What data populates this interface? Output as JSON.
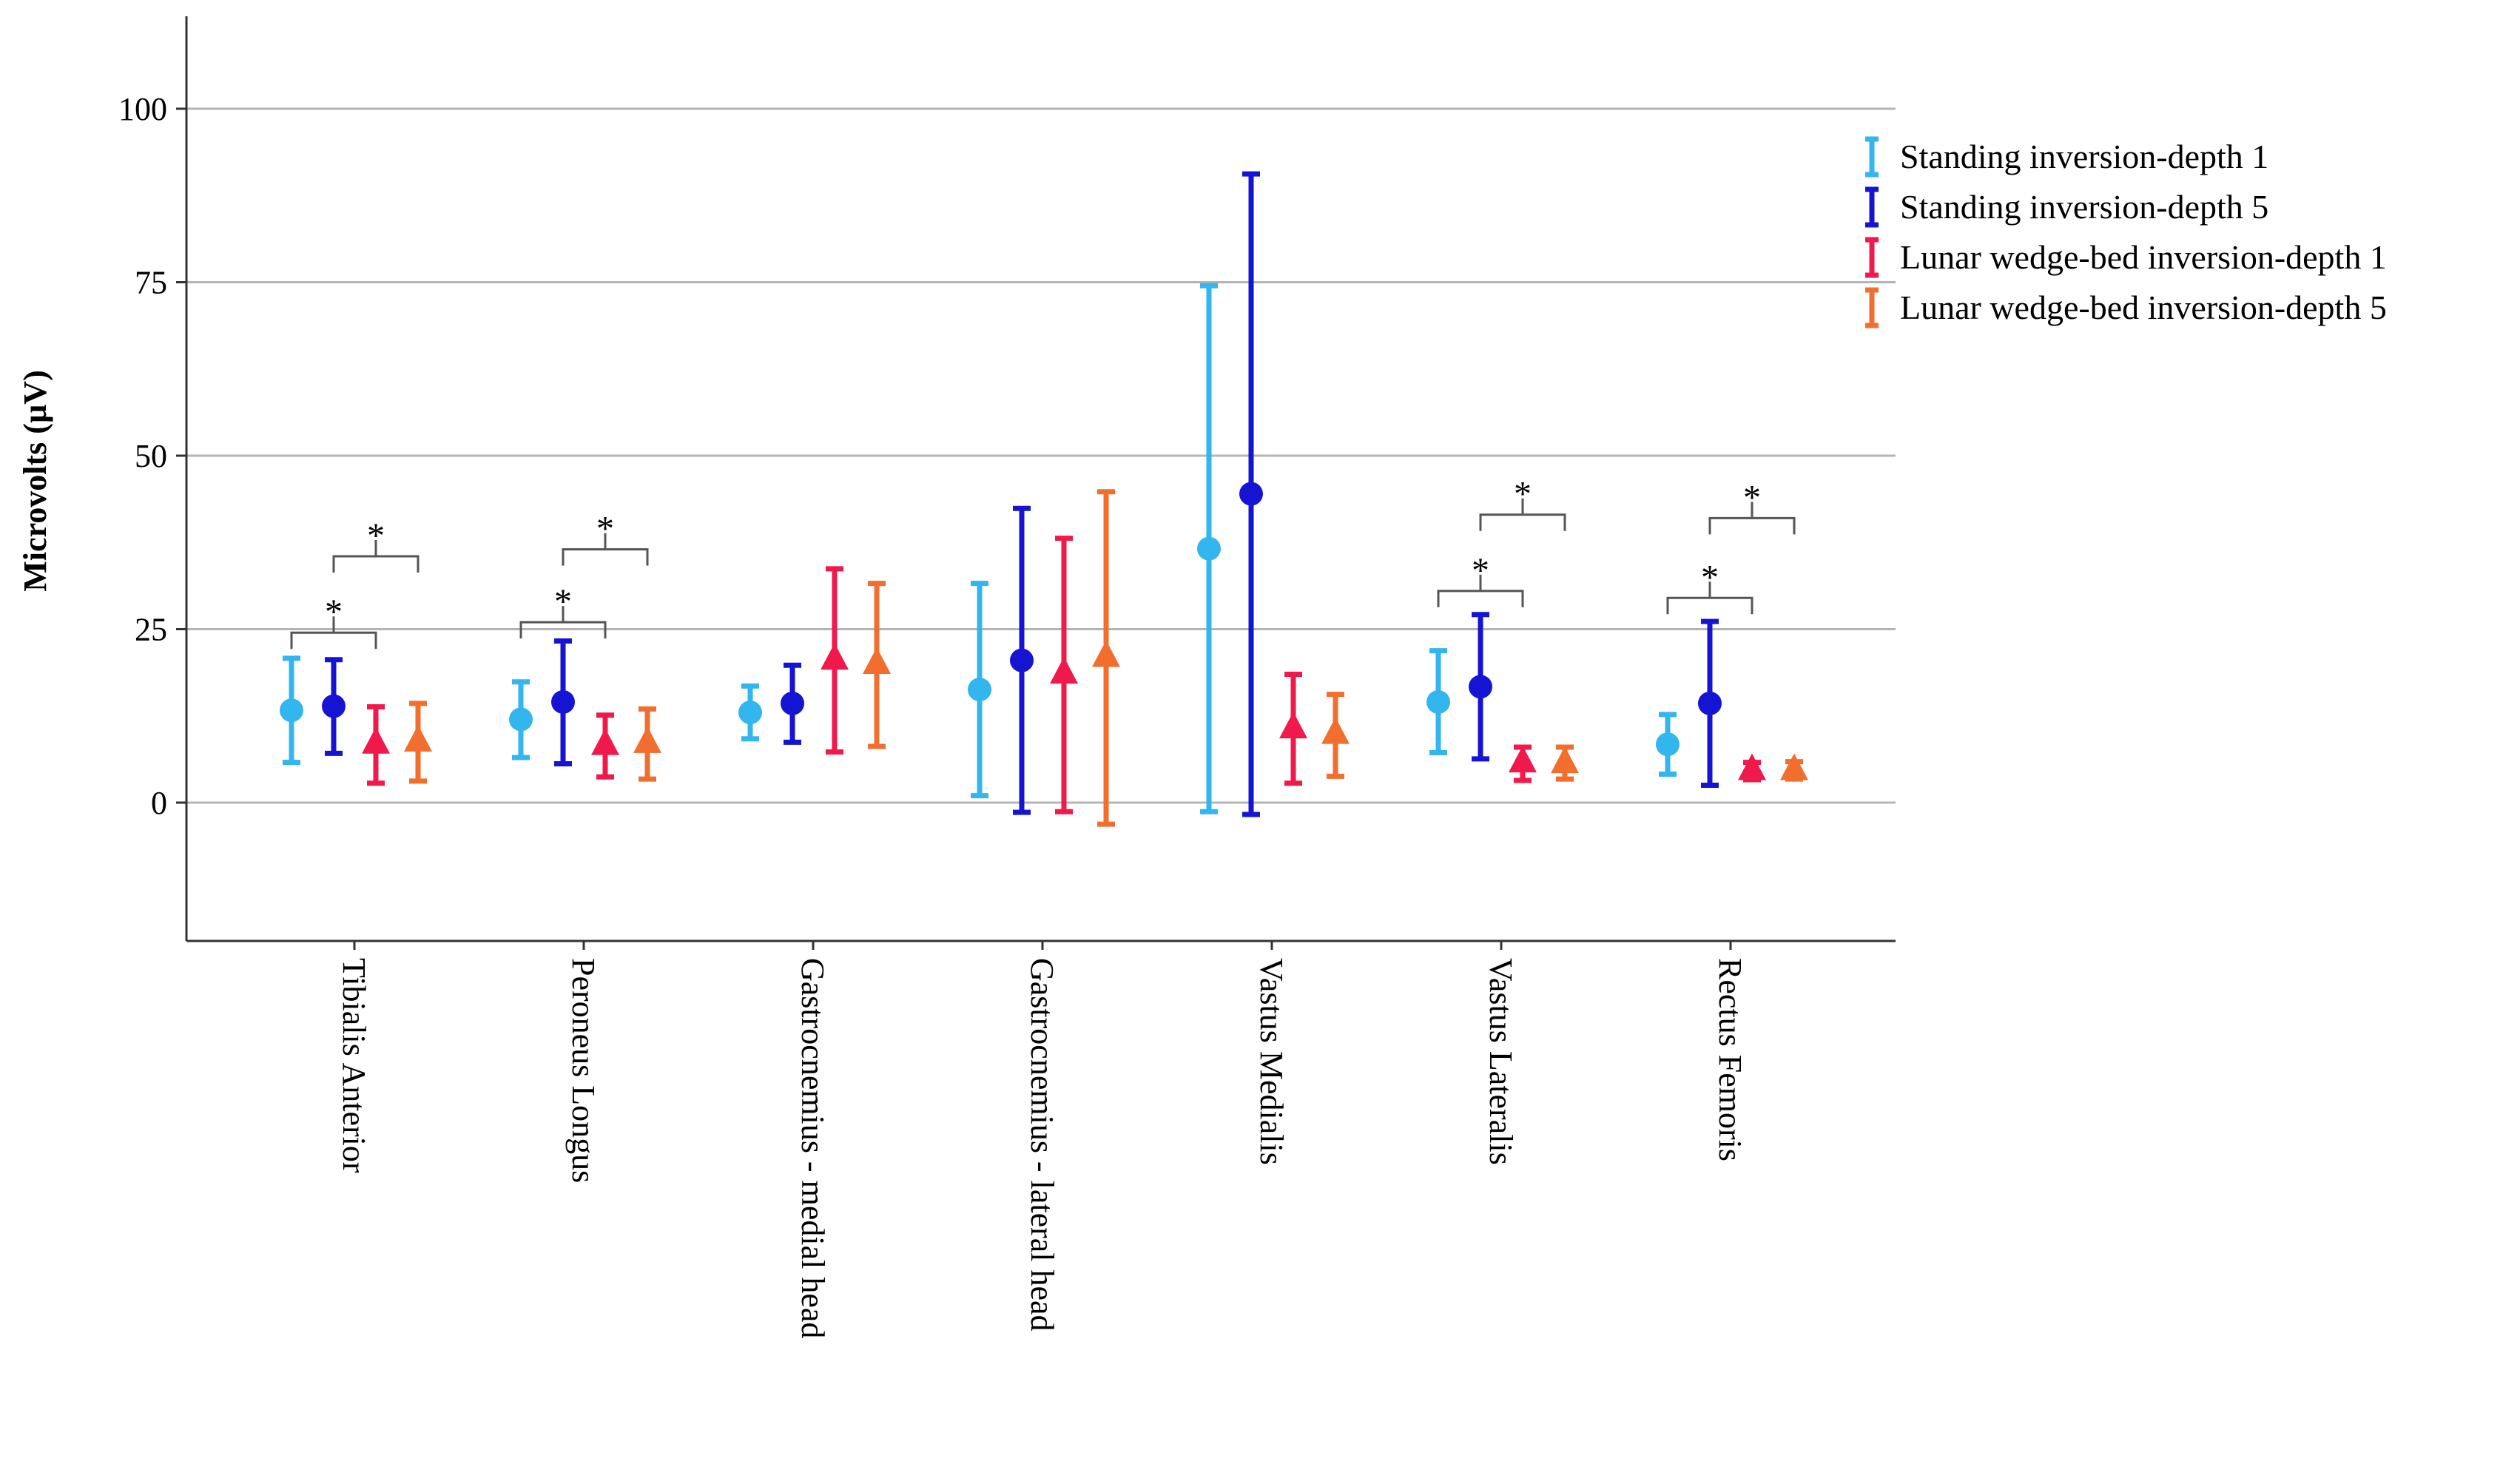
{
  "chart_data": {
    "type": "error-bar",
    "title": "",
    "xlabel": "",
    "ylabel": "Microvolts (µV)",
    "ylim": [
      -20,
      113
    ],
    "yticks": [
      0,
      25,
      50,
      75,
      100
    ],
    "grid": true,
    "legend_position": "top-right",
    "categories": [
      "Tibialis Anterior",
      "Peroneus Longus",
      "Gastrocnemius - medial head",
      "Gastrocnemius - lateral head",
      "Vastus Medialis",
      "Vastus Lateralis",
      "Rectus Femoris"
    ],
    "series": [
      {
        "name": "Standing inversion-depth 1",
        "color": "#33b5ee",
        "marker": "circle",
        "means": [
          13.3,
          12.0,
          13.0,
          16.3,
          36.6,
          14.5,
          8.4
        ],
        "lower": [
          5.8,
          6.5,
          9.2,
          1.0,
          -1.3,
          7.2,
          4.1
        ],
        "upper": [
          20.8,
          17.4,
          16.8,
          31.6,
          74.5,
          21.9,
          12.7
        ]
      },
      {
        "name": "Standing inversion-depth 5",
        "color": "#1414d2",
        "marker": "circle",
        "means": [
          13.9,
          14.5,
          14.3,
          20.5,
          44.5,
          16.7,
          14.3
        ],
        "lower": [
          7.1,
          5.6,
          8.7,
          -1.4,
          -1.7,
          6.3,
          2.5
        ],
        "upper": [
          20.6,
          23.3,
          19.8,
          42.4,
          90.6,
          27.1,
          26.1
        ]
      },
      {
        "name": "Lunar wedge-bed inversion-depth 1",
        "color": "#f0194b",
        "marker": "triangle",
        "means": [
          8.4,
          8.2,
          20.5,
          18.5,
          10.6,
          5.7,
          4.6
        ],
        "lower": [
          2.8,
          3.7,
          7.3,
          -1.3,
          2.8,
          3.2,
          3.3
        ],
        "upper": [
          13.8,
          12.6,
          33.7,
          38.1,
          18.5,
          8.0,
          5.8
        ]
      },
      {
        "name": "Lunar wedge-bed inversion-depth 5",
        "color": "#f26e2f",
        "marker": "triangle",
        "means": [
          8.7,
          8.5,
          19.9,
          20.9,
          9.8,
          5.6,
          4.6
        ],
        "lower": [
          3.1,
          3.4,
          8.1,
          -3.1,
          3.8,
          3.4,
          3.4
        ],
        "upper": [
          14.3,
          13.5,
          31.6,
          44.8,
          15.6,
          8.0,
          5.9
        ]
      }
    ],
    "significance": [
      {
        "category": 0,
        "from_series": 0,
        "to_series": 2,
        "y": 24.5,
        "label": "*"
      },
      {
        "category": 0,
        "from_series": 1,
        "to_series": 3,
        "y": 35.5,
        "label": "*"
      },
      {
        "category": 1,
        "from_series": 0,
        "to_series": 2,
        "y": 26.0,
        "label": "*"
      },
      {
        "category": 1,
        "from_series": 1,
        "to_series": 3,
        "y": 36.5,
        "label": "*"
      },
      {
        "category": 5,
        "from_series": 0,
        "to_series": 2,
        "y": 30.5,
        "label": "*"
      },
      {
        "category": 5,
        "from_series": 1,
        "to_series": 3,
        "y": 41.5,
        "label": "*"
      },
      {
        "category": 6,
        "from_series": 0,
        "to_series": 2,
        "y": 29.5,
        "label": "*"
      },
      {
        "category": 6,
        "from_series": 1,
        "to_series": 3,
        "y": 41.0,
        "label": "*"
      }
    ]
  }
}
